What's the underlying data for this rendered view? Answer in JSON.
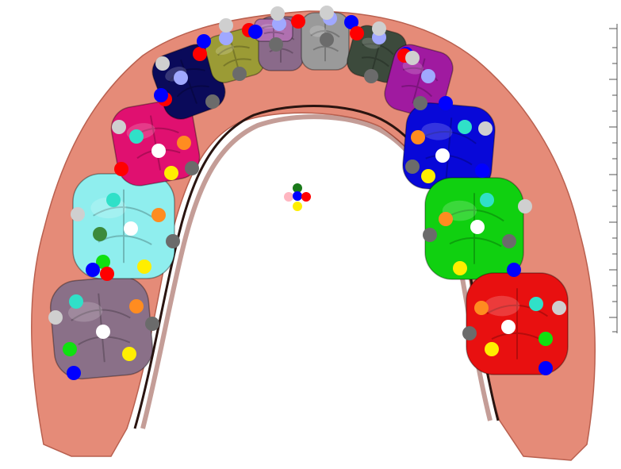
{
  "scene": {
    "background": "#ffffff",
    "gum_color": "#e58b78",
    "gum_shadow": "#b9604f",
    "gum_dark": "#2a1410"
  },
  "teeth": [
    {
      "id": "molar-left-back",
      "color": "#8a7088"
    },
    {
      "id": "molar-left",
      "color": "#8feeee"
    },
    {
      "id": "premolar-left-2",
      "color": "#e01070"
    },
    {
      "id": "premolar-left-1",
      "color": "#0a0a5a"
    },
    {
      "id": "canine-left",
      "color": "#9b9b35"
    },
    {
      "id": "incisor-left-2",
      "color": "#b070b0"
    },
    {
      "id": "incisor-left-1",
      "color": "#8a6a8a"
    },
    {
      "id": "incisor-right-1",
      "color": "#9a9a9a"
    },
    {
      "id": "incisor-right-2",
      "color": "#3c4a3c"
    },
    {
      "id": "canine-right",
      "color": "#a01aa0"
    },
    {
      "id": "premolar-right-1",
      "color": "#0808d8"
    },
    {
      "id": "premolar-right-2",
      "color": "#10d010"
    },
    {
      "id": "molar-right",
      "color": "#e81010"
    }
  ],
  "landmark_colors": {
    "white": "#ffffff",
    "grey": "#6b6b6b",
    "lightgrey": "#cfcfcf",
    "cyan": "#30e0c8",
    "orange": "#ff8c20",
    "yellow": "#ffee00",
    "green": "#10e010",
    "darkgreen": "#3c8a3c",
    "blue": "#0000ff",
    "red": "#ff0000",
    "lavender": "#a0a8ff",
    "pink": "#ffb6c1",
    "forest": "#1a7a1a"
  },
  "center_marker": [
    "forest",
    "pink",
    "blue",
    "red",
    "yellow"
  ]
}
